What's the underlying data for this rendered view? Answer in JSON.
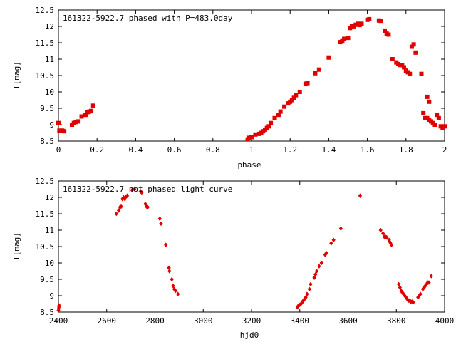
{
  "chart_data": [
    {
      "type": "scatter",
      "title": "161322-5922.7 phased with P=483.0day",
      "xlabel": "phase",
      "ylabel": "I[mag]",
      "xlim": [
        0,
        2
      ],
      "ylim": [
        12.5,
        8.5
      ],
      "y_inverted": true,
      "grid": false,
      "marker_color": "#e00000",
      "xticks": [
        "0",
        "0.2",
        "0.4",
        "0.6",
        "0.8",
        "1",
        "1.2",
        "1.4",
        "1.6",
        "1.8",
        "2"
      ],
      "yticks": [
        "8.5",
        "9",
        "9.5",
        "10",
        "10.5",
        "11",
        "11.5",
        "12",
        "12.5"
      ],
      "points": [
        [
          0.0,
          9.05
        ],
        [
          0.005,
          8.82
        ],
        [
          0.02,
          8.82
        ],
        [
          0.03,
          8.8
        ],
        [
          0.07,
          9.0
        ],
        [
          0.08,
          9.05
        ],
        [
          0.09,
          9.08
        ],
        [
          0.1,
          9.1
        ],
        [
          0.12,
          9.25
        ],
        [
          0.14,
          9.3
        ],
        [
          0.15,
          9.38
        ],
        [
          0.16,
          9.4
        ],
        [
          0.17,
          9.42
        ],
        [
          0.18,
          9.58
        ],
        [
          0.98,
          8.55
        ],
        [
          0.985,
          8.6
        ],
        [
          1.0,
          8.62
        ],
        [
          1.02,
          8.7
        ],
        [
          1.04,
          8.72
        ],
        [
          1.05,
          8.75
        ],
        [
          1.06,
          8.8
        ],
        [
          1.07,
          8.85
        ],
        [
          1.08,
          8.9
        ],
        [
          1.09,
          8.95
        ],
        [
          1.1,
          9.05
        ],
        [
          1.12,
          9.2
        ],
        [
          1.14,
          9.3
        ],
        [
          1.15,
          9.4
        ],
        [
          1.17,
          9.55
        ],
        [
          1.19,
          9.65
        ],
        [
          1.2,
          9.7
        ],
        [
          1.21,
          9.75
        ],
        [
          1.22,
          9.82
        ],
        [
          1.23,
          9.9
        ],
        [
          1.25,
          10.0
        ],
        [
          1.28,
          10.25
        ],
        [
          1.29,
          10.27
        ],
        [
          1.33,
          10.57
        ],
        [
          1.35,
          10.68
        ],
        [
          1.4,
          11.05
        ],
        [
          1.46,
          11.52
        ],
        [
          1.47,
          11.55
        ],
        [
          1.48,
          11.62
        ],
        [
          1.5,
          11.65
        ],
        [
          1.51,
          11.95
        ],
        [
          1.52,
          12.0
        ],
        [
          1.53,
          11.98
        ],
        [
          1.54,
          12.05
        ],
        [
          1.55,
          12.08
        ],
        [
          1.56,
          12.04
        ],
        [
          1.57,
          12.08
        ],
        [
          1.6,
          12.2
        ],
        [
          1.61,
          12.22
        ],
        [
          1.66,
          12.18
        ],
        [
          1.67,
          12.17
        ],
        [
          1.69,
          11.85
        ],
        [
          1.7,
          11.78
        ],
        [
          1.71,
          11.75
        ],
        [
          1.73,
          11.0
        ],
        [
          1.75,
          10.9
        ],
        [
          1.76,
          10.85
        ],
        [
          1.77,
          10.82
        ],
        [
          1.78,
          10.82
        ],
        [
          1.79,
          10.75
        ],
        [
          1.8,
          10.65
        ],
        [
          1.81,
          10.6
        ],
        [
          1.82,
          10.55
        ],
        [
          1.83,
          11.38
        ],
        [
          1.84,
          11.45
        ],
        [
          1.85,
          11.2
        ],
        [
          1.88,
          10.55
        ],
        [
          1.89,
          9.35
        ],
        [
          1.9,
          9.2
        ],
        [
          1.91,
          9.85
        ],
        [
          1.92,
          9.7
        ],
        [
          1.91,
          9.2
        ],
        [
          1.92,
          9.15
        ],
        [
          1.93,
          9.1
        ],
        [
          1.94,
          9.05
        ],
        [
          1.95,
          9.0
        ],
        [
          1.96,
          9.3
        ],
        [
          1.97,
          9.2
        ],
        [
          1.98,
          8.95
        ],
        [
          1.99,
          8.9
        ],
        [
          2.0,
          8.95
        ]
      ]
    },
    {
      "type": "scatter",
      "title": "161322-5922.7 not phased light curve",
      "xlabel": "hjd0",
      "ylabel": "I[mag]",
      "xlim": [
        2400,
        4000
      ],
      "ylim": [
        12.5,
        8.5
      ],
      "y_inverted": true,
      "grid": false,
      "marker_color": "#e00000",
      "xticks": [
        "2400",
        "2600",
        "2800",
        "3000",
        "3200",
        "3400",
        "3600",
        "3800",
        "4000"
      ],
      "yticks": [
        "8.5",
        "9",
        "9.5",
        "10",
        "10.5",
        "11",
        "11.5",
        "12",
        "12.5"
      ],
      "points": [
        [
          2400,
          8.55
        ],
        [
          2401,
          8.6
        ],
        [
          2402,
          8.65
        ],
        [
          2403,
          8.7
        ],
        [
          2640,
          11.5
        ],
        [
          2650,
          11.6
        ],
        [
          2655,
          11.7
        ],
        [
          2660,
          11.72
        ],
        [
          2665,
          11.95
        ],
        [
          2670,
          12.0
        ],
        [
          2675,
          11.95
        ],
        [
          2680,
          12.02
        ],
        [
          2685,
          12.05
        ],
        [
          2705,
          12.22
        ],
        [
          2715,
          12.25
        ],
        [
          2740,
          12.18
        ],
        [
          2745,
          12.15
        ],
        [
          2760,
          11.8
        ],
        [
          2765,
          11.72
        ],
        [
          2770,
          11.7
        ],
        [
          2820,
          11.35
        ],
        [
          2825,
          11.2
        ],
        [
          2845,
          10.55
        ],
        [
          2858,
          9.85
        ],
        [
          2860,
          9.75
        ],
        [
          2870,
          9.5
        ],
        [
          2875,
          9.3
        ],
        [
          2880,
          9.2
        ],
        [
          2885,
          9.15
        ],
        [
          2895,
          9.05
        ],
        [
          3390,
          8.65
        ],
        [
          3395,
          8.7
        ],
        [
          3400,
          8.72
        ],
        [
          3405,
          8.75
        ],
        [
          3410,
          8.8
        ],
        [
          3415,
          8.85
        ],
        [
          3420,
          8.9
        ],
        [
          3425,
          8.95
        ],
        [
          3430,
          9.05
        ],
        [
          3440,
          9.2
        ],
        [
          3445,
          9.35
        ],
        [
          3460,
          9.55
        ],
        [
          3465,
          9.65
        ],
        [
          3470,
          9.75
        ],
        [
          3480,
          9.9
        ],
        [
          3490,
          10.0
        ],
        [
          3505,
          10.25
        ],
        [
          3510,
          10.3
        ],
        [
          3530,
          10.6
        ],
        [
          3540,
          10.7
        ],
        [
          3570,
          11.05
        ],
        [
          3650,
          12.05
        ],
        [
          3735,
          11.0
        ],
        [
          3745,
          10.9
        ],
        [
          3750,
          10.8
        ],
        [
          3755,
          10.8
        ],
        [
          3760,
          10.78
        ],
        [
          3770,
          10.7
        ],
        [
          3775,
          10.62
        ],
        [
          3780,
          10.55
        ],
        [
          3810,
          9.35
        ],
        [
          3815,
          9.25
        ],
        [
          3820,
          9.15
        ],
        [
          3825,
          9.1
        ],
        [
          3830,
          9.05
        ],
        [
          3835,
          9.0
        ],
        [
          3840,
          8.95
        ],
        [
          3845,
          8.9
        ],
        [
          3850,
          8.85
        ],
        [
          3855,
          8.85
        ],
        [
          3860,
          8.82
        ],
        [
          3865,
          8.82
        ],
        [
          3870,
          8.8
        ],
        [
          3890,
          8.95
        ],
        [
          3895,
          9.0
        ],
        [
          3900,
          9.05
        ],
        [
          3910,
          9.2
        ],
        [
          3915,
          9.25
        ],
        [
          3920,
          9.3
        ],
        [
          3925,
          9.35
        ],
        [
          3930,
          9.4
        ],
        [
          3935,
          9.4
        ],
        [
          3945,
          9.6
        ]
      ]
    }
  ]
}
